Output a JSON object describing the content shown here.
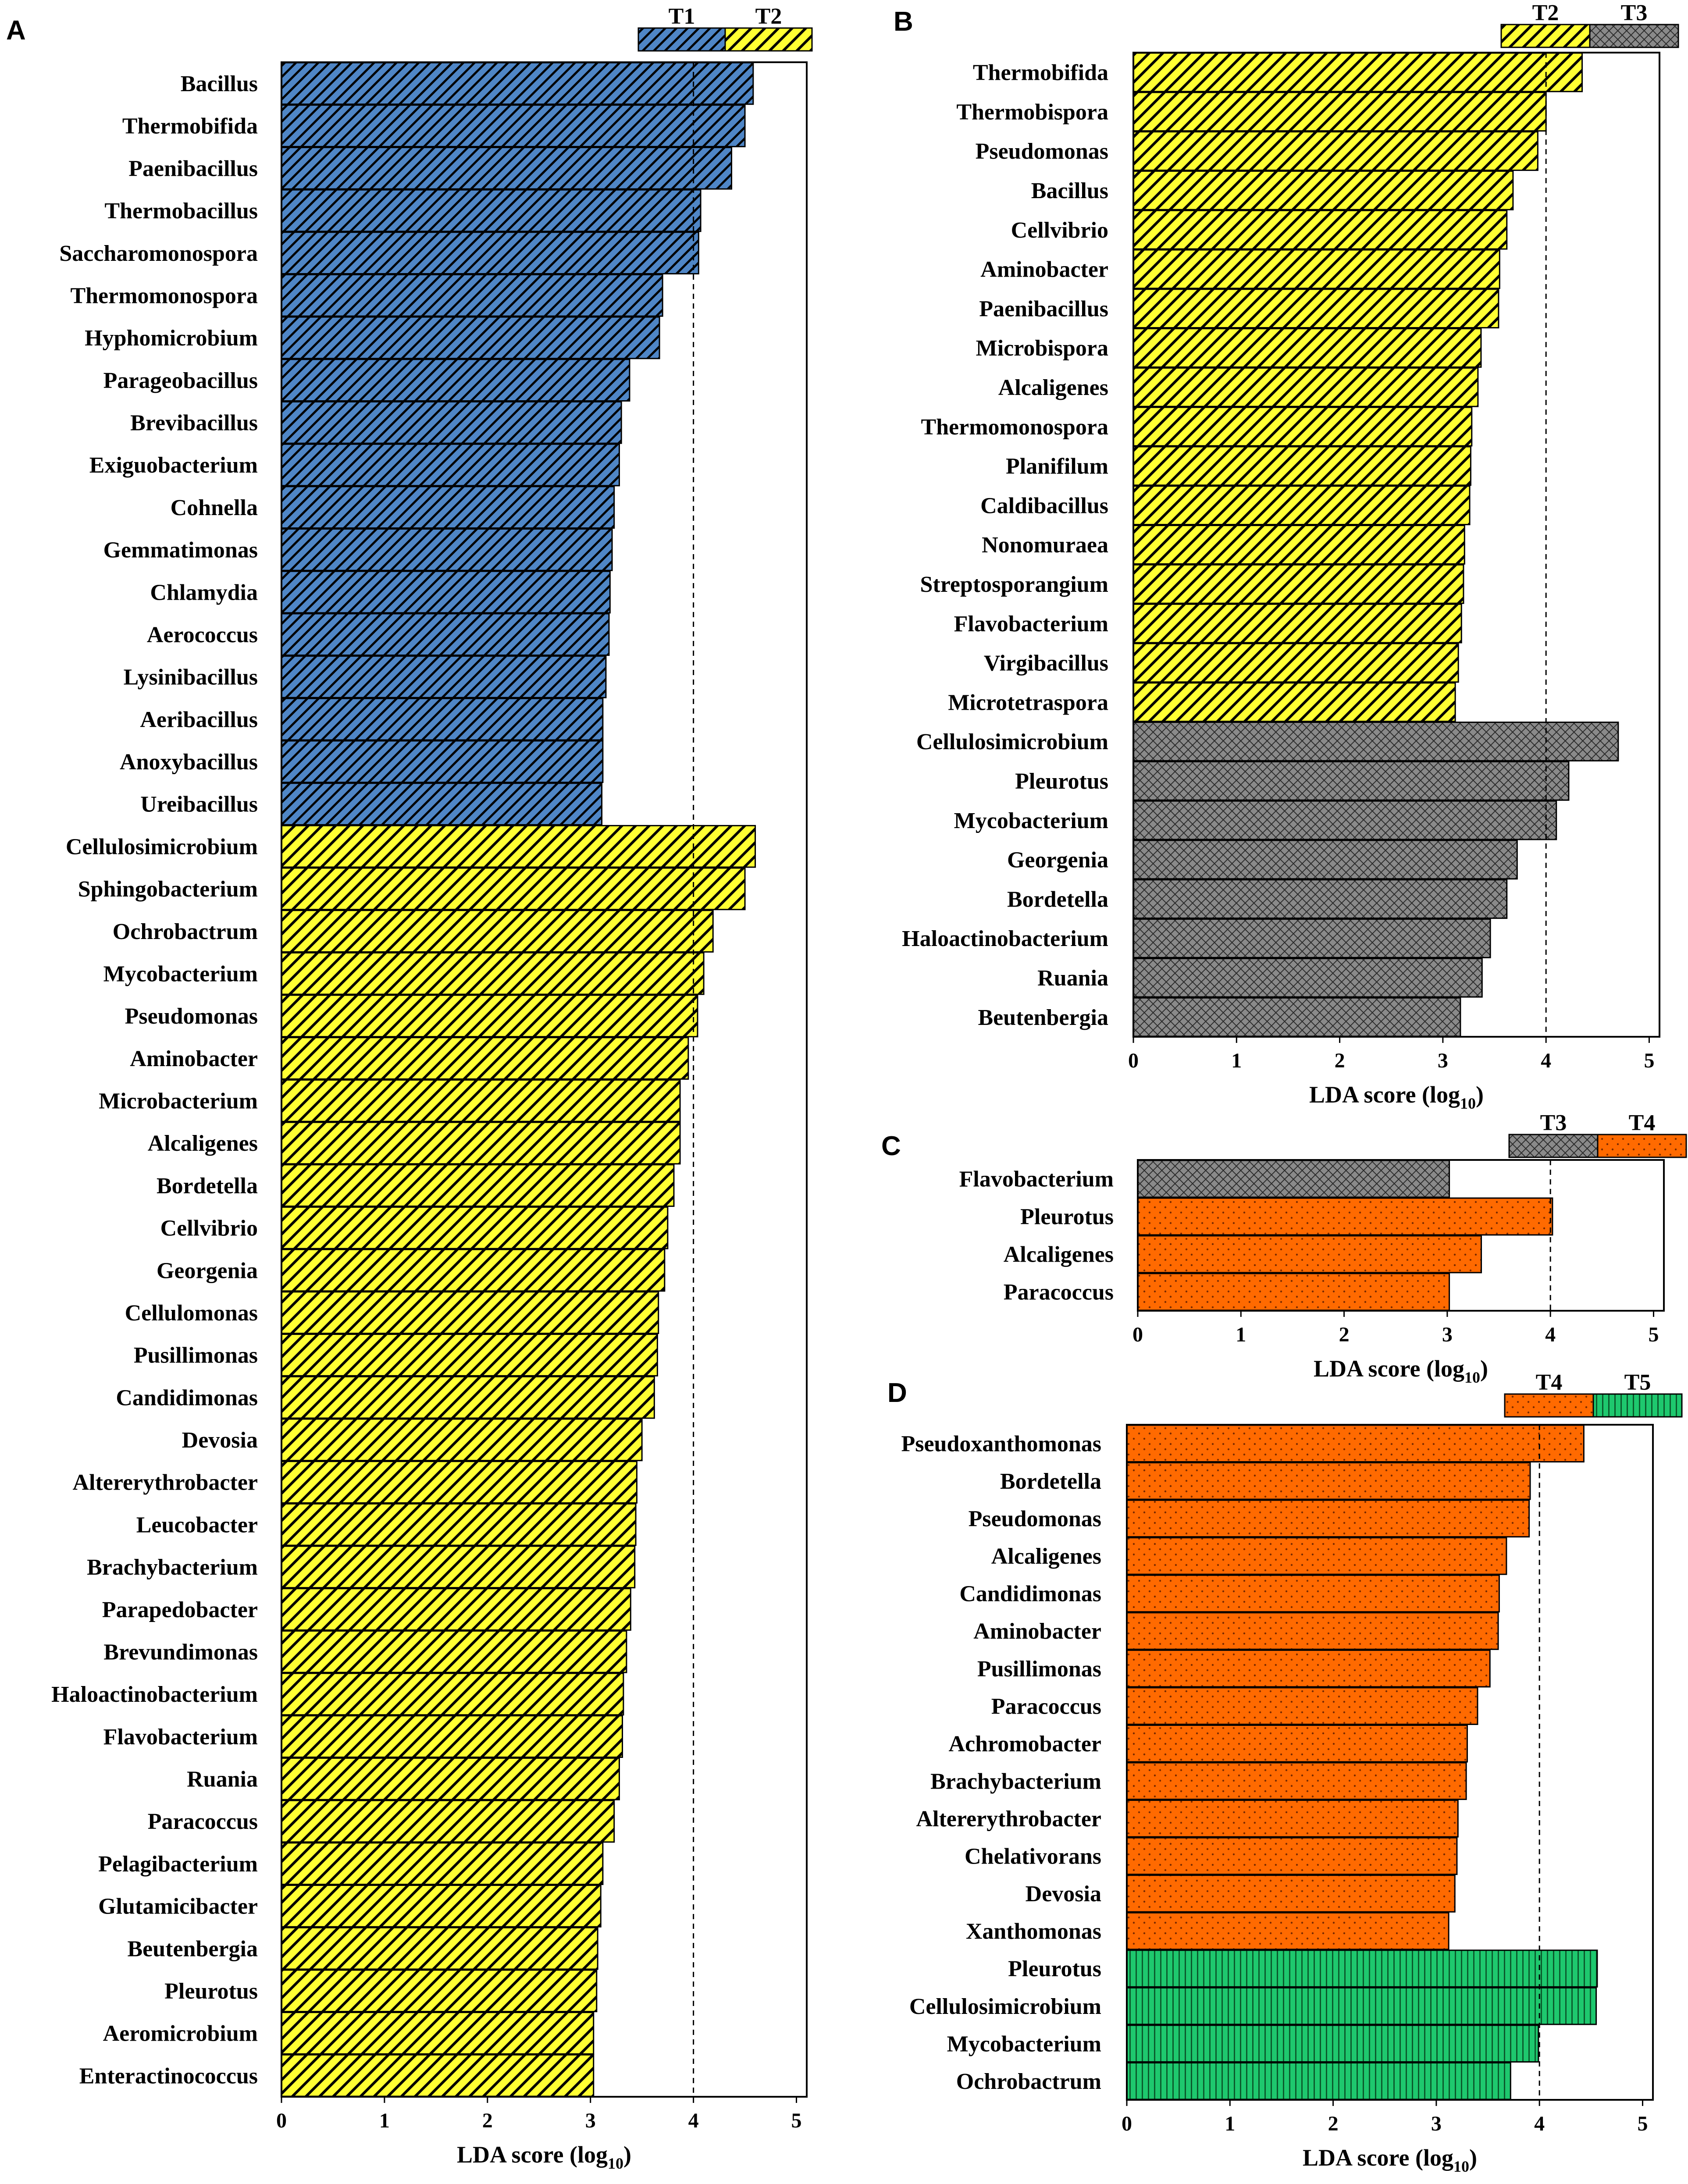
{
  "colors": {
    "T1": "#4f86c6",
    "T2": "#ffff33",
    "T3": "#8a8a8a",
    "T4": "#ff6a00",
    "T5": "#1ec86e",
    "frame": "#000000",
    "reference_line": "#000000"
  },
  "chart_data": [
    {
      "panel": "A",
      "type": "bar",
      "orientation": "horizontal",
      "xlabel": "LDA score (log",
      "xlabel_sub": "10",
      "xlabel_end": ")",
      "xlim": [
        0,
        5.1
      ],
      "xticks": [
        "0",
        "1",
        "2",
        "3",
        "4",
        "5"
      ],
      "reference_line": 4,
      "legend": [
        {
          "group": "T1",
          "label": "T1"
        },
        {
          "group": "T2",
          "label": "T2"
        }
      ],
      "bars": [
        {
          "label": "Bacillus",
          "value": 4.58,
          "group": "T1"
        },
        {
          "label": "Thermobifida",
          "value": 4.5,
          "group": "T1"
        },
        {
          "label": "Paenibacillus",
          "value": 4.37,
          "group": "T1"
        },
        {
          "label": "Thermobacillus",
          "value": 4.07,
          "group": "T1"
        },
        {
          "label": "Saccharomonospora",
          "value": 4.05,
          "group": "T1"
        },
        {
          "label": "Thermomonospora",
          "value": 3.7,
          "group": "T1"
        },
        {
          "label": "Hyphomicrobium",
          "value": 3.67,
          "group": "T1"
        },
        {
          "label": "Parageobacillus",
          "value": 3.38,
          "group": "T1"
        },
        {
          "label": "Brevibacillus",
          "value": 3.3,
          "group": "T1"
        },
        {
          "label": "Exiguobacterium",
          "value": 3.28,
          "group": "T1"
        },
        {
          "label": "Cohnella",
          "value": 3.23,
          "group": "T1"
        },
        {
          "label": "Gemmatimonas",
          "value": 3.21,
          "group": "T1"
        },
        {
          "label": "Chlamydia",
          "value": 3.19,
          "group": "T1"
        },
        {
          "label": "Aerococcus",
          "value": 3.18,
          "group": "T1"
        },
        {
          "label": "Lysinibacillus",
          "value": 3.15,
          "group": "T1"
        },
        {
          "label": "Aeribacillus",
          "value": 3.12,
          "group": "T1"
        },
        {
          "label": "Anoxybacillus",
          "value": 3.12,
          "group": "T1"
        },
        {
          "label": "Ureibacillus",
          "value": 3.11,
          "group": "T1"
        },
        {
          "label": "Cellulosimicrobium",
          "value": 4.6,
          "group": "T2"
        },
        {
          "label": "Sphingobacterium",
          "value": 4.5,
          "group": "T2"
        },
        {
          "label": "Ochrobactrum",
          "value": 4.19,
          "group": "T2"
        },
        {
          "label": "Mycobacterium",
          "value": 4.1,
          "group": "T2"
        },
        {
          "label": "Pseudomonas",
          "value": 4.04,
          "group": "T2"
        },
        {
          "label": "Aminobacter",
          "value": 3.95,
          "group": "T2"
        },
        {
          "label": "Microbacterium",
          "value": 3.87,
          "group": "T2"
        },
        {
          "label": "Alcaligenes",
          "value": 3.87,
          "group": "T2"
        },
        {
          "label": "Bordetella",
          "value": 3.81,
          "group": "T2"
        },
        {
          "label": "Cellvibrio",
          "value": 3.75,
          "group": "T2"
        },
        {
          "label": "Georgenia",
          "value": 3.72,
          "group": "T2"
        },
        {
          "label": "Cellulomonas",
          "value": 3.66,
          "group": "T2"
        },
        {
          "label": "Pusillimonas",
          "value": 3.65,
          "group": "T2"
        },
        {
          "label": "Candidimonas",
          "value": 3.62,
          "group": "T2"
        },
        {
          "label": "Devosia",
          "value": 3.5,
          "group": "T2"
        },
        {
          "label": "Altererythrobacter",
          "value": 3.45,
          "group": "T2"
        },
        {
          "label": "Leucobacter",
          "value": 3.44,
          "group": "T2"
        },
        {
          "label": "Brachybacterium",
          "value": 3.43,
          "group": "T2"
        },
        {
          "label": "Parapedobacter",
          "value": 3.39,
          "group": "T2"
        },
        {
          "label": "Brevundimonas",
          "value": 3.35,
          "group": "T2"
        },
        {
          "label": "Haloactinobacterium",
          "value": 3.32,
          "group": "T2"
        },
        {
          "label": "Flavobacterium",
          "value": 3.31,
          "group": "T2"
        },
        {
          "label": "Ruania",
          "value": 3.28,
          "group": "T2"
        },
        {
          "label": "Paracoccus",
          "value": 3.23,
          "group": "T2"
        },
        {
          "label": "Pelagibacterium",
          "value": 3.12,
          "group": "T2"
        },
        {
          "label": "Glutamicibacter",
          "value": 3.1,
          "group": "T2"
        },
        {
          "label": "Beutenbergia",
          "value": 3.07,
          "group": "T2"
        },
        {
          "label": "Pleurotus",
          "value": 3.06,
          "group": "T2"
        },
        {
          "label": "Aeromicrobium",
          "value": 3.03,
          "group": "T2"
        },
        {
          "label": "Enteractinococcus",
          "value": 3.03,
          "group": "T2"
        }
      ]
    },
    {
      "panel": "B",
      "type": "bar",
      "orientation": "horizontal",
      "xlabel": "LDA score (log",
      "xlabel_sub": "10",
      "xlabel_end": ")",
      "xlim": [
        0,
        5.1
      ],
      "xticks": [
        "0",
        "1",
        "2",
        "3",
        "4",
        "5"
      ],
      "reference_line": 4,
      "legend": [
        {
          "group": "T2",
          "label": "T2"
        },
        {
          "group": "T3",
          "label": "T3"
        }
      ],
      "bars": [
        {
          "label": "Thermobifida",
          "value": 4.35,
          "group": "T2"
        },
        {
          "label": "Thermobispora",
          "value": 4.0,
          "group": "T2"
        },
        {
          "label": "Pseudomonas",
          "value": 3.92,
          "group": "T2"
        },
        {
          "label": "Bacillus",
          "value": 3.68,
          "group": "T2"
        },
        {
          "label": "Cellvibrio",
          "value": 3.62,
          "group": "T2"
        },
        {
          "label": "Aminobacter",
          "value": 3.55,
          "group": "T2"
        },
        {
          "label": "Paenibacillus",
          "value": 3.54,
          "group": "T2"
        },
        {
          "label": "Microbispora",
          "value": 3.37,
          "group": "T2"
        },
        {
          "label": "Alcaligenes",
          "value": 3.34,
          "group": "T2"
        },
        {
          "label": "Thermomonospora",
          "value": 3.28,
          "group": "T2"
        },
        {
          "label": "Planifilum",
          "value": 3.27,
          "group": "T2"
        },
        {
          "label": "Caldibacillus",
          "value": 3.26,
          "group": "T2"
        },
        {
          "label": "Nonomuraea",
          "value": 3.21,
          "group": "T2"
        },
        {
          "label": "Streptosporangium",
          "value": 3.2,
          "group": "T2"
        },
        {
          "label": "Flavobacterium",
          "value": 3.18,
          "group": "T2"
        },
        {
          "label": "Virgibacillus",
          "value": 3.15,
          "group": "T2"
        },
        {
          "label": "Microtetraspora",
          "value": 3.12,
          "group": "T2"
        },
        {
          "label": "Cellulosimicrobium",
          "value": 4.7,
          "group": "T3"
        },
        {
          "label": "Pleurotus",
          "value": 4.22,
          "group": "T3"
        },
        {
          "label": "Mycobacterium",
          "value": 4.1,
          "group": "T3"
        },
        {
          "label": "Georgenia",
          "value": 3.72,
          "group": "T3"
        },
        {
          "label": "Bordetella",
          "value": 3.62,
          "group": "T3"
        },
        {
          "label": "Haloactinobacterium",
          "value": 3.46,
          "group": "T3"
        },
        {
          "label": "Ruania",
          "value": 3.38,
          "group": "T3"
        },
        {
          "label": "Beutenbergia",
          "value": 3.17,
          "group": "T3"
        }
      ]
    },
    {
      "panel": "C",
      "type": "bar",
      "orientation": "horizontal",
      "xlabel": "LDA score (log",
      "xlabel_sub": "10",
      "xlabel_end": ")",
      "xlim": [
        0,
        5.1
      ],
      "xticks": [
        "0",
        "1",
        "2",
        "3",
        "4",
        "5"
      ],
      "reference_line": 4,
      "legend": [
        {
          "group": "T3",
          "label": "T3"
        },
        {
          "group": "T4",
          "label": "T4"
        }
      ],
      "bars": [
        {
          "label": "Flavobacterium",
          "value": 3.02,
          "group": "T3"
        },
        {
          "label": "Pleurotus",
          "value": 4.02,
          "group": "T4"
        },
        {
          "label": "Alcaligenes",
          "value": 3.33,
          "group": "T4"
        },
        {
          "label": "Paracoccus",
          "value": 3.02,
          "group": "T4"
        }
      ]
    },
    {
      "panel": "D",
      "type": "bar",
      "orientation": "horizontal",
      "xlabel": "LDA score (log",
      "xlabel_sub": "10",
      "xlabel_end": ")",
      "xlim": [
        0,
        5.1
      ],
      "xticks": [
        "0",
        "1",
        "2",
        "3",
        "4",
        "5"
      ],
      "reference_line": 4,
      "legend": [
        {
          "group": "T4",
          "label": "T4"
        },
        {
          "group": "T5",
          "label": "T5"
        }
      ],
      "bars": [
        {
          "label": "Pseudoxanthomonas",
          "value": 4.43,
          "group": "T4"
        },
        {
          "label": "Bordetella",
          "value": 3.91,
          "group": "T4"
        },
        {
          "label": "Pseudomonas",
          "value": 3.9,
          "group": "T4"
        },
        {
          "label": "Alcaligenes",
          "value": 3.68,
          "group": "T4"
        },
        {
          "label": "Candidimonas",
          "value": 3.61,
          "group": "T4"
        },
        {
          "label": "Aminobacter",
          "value": 3.6,
          "group": "T4"
        },
        {
          "label": "Pusillimonas",
          "value": 3.52,
          "group": "T4"
        },
        {
          "label": "Paracoccus",
          "value": 3.4,
          "group": "T4"
        },
        {
          "label": "Achromobacter",
          "value": 3.3,
          "group": "T4"
        },
        {
          "label": "Brachybacterium",
          "value": 3.29,
          "group": "T4"
        },
        {
          "label": "Altererythrobacter",
          "value": 3.21,
          "group": "T4"
        },
        {
          "label": "Chelativorans",
          "value": 3.2,
          "group": "T4"
        },
        {
          "label": "Devosia",
          "value": 3.18,
          "group": "T4"
        },
        {
          "label": "Xanthomonas",
          "value": 3.12,
          "group": "T4"
        },
        {
          "label": "Pleurotus",
          "value": 4.56,
          "group": "T5"
        },
        {
          "label": "Cellulosimicrobium",
          "value": 4.55,
          "group": "T5"
        },
        {
          "label": "Mycobacterium",
          "value": 3.99,
          "group": "T5"
        },
        {
          "label": "Ochrobactrum",
          "value": 3.72,
          "group": "T5"
        }
      ]
    }
  ]
}
